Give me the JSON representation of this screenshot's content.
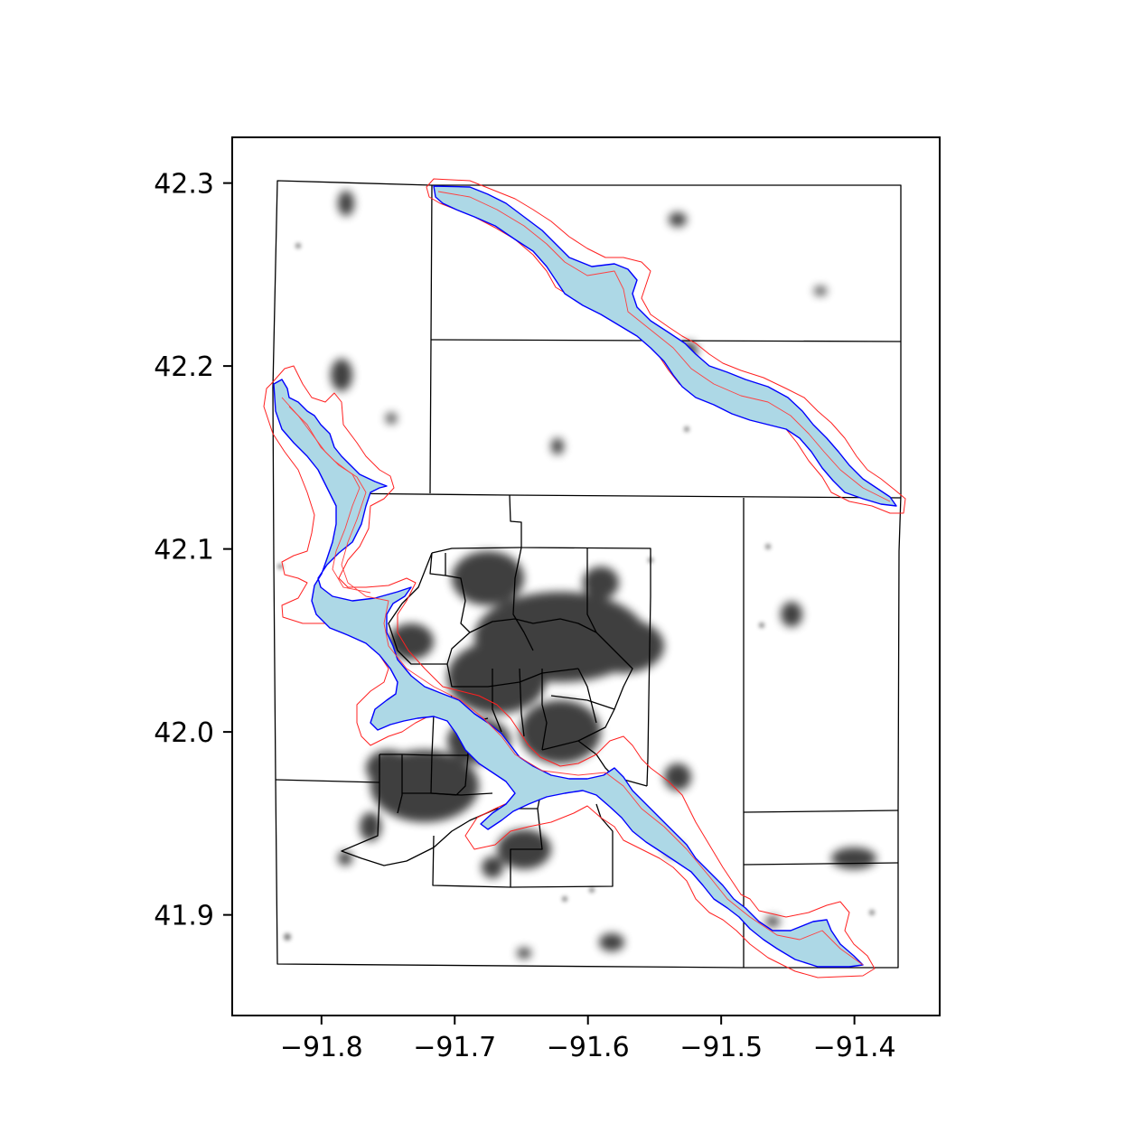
{
  "map": {
    "xlim": [
      -91.867,
      -91.336
    ],
    "ylim": [
      41.845,
      42.325
    ],
    "x_ticks": [
      {
        "value": -91.8,
        "label": "−91.8"
      },
      {
        "value": -91.7,
        "label": "−91.7"
      },
      {
        "value": -91.6,
        "label": "−91.6"
      },
      {
        "value": -91.5,
        "label": "−91.5"
      },
      {
        "value": -91.4,
        "label": "−91.4"
      }
    ],
    "y_ticks": [
      {
        "value": 42.3,
        "label": "42.3"
      },
      {
        "value": 42.2,
        "label": "42.2"
      },
      {
        "value": 42.1,
        "label": "42.1"
      },
      {
        "value": 42.0,
        "label": "42.0"
      },
      {
        "value": 41.9,
        "label": "41.9"
      }
    ],
    "colors": {
      "boundary": "#000000",
      "flood_fill": "#add8e6",
      "flood_edge": "#0000ff",
      "buffer": "#ff0000",
      "density": "#000000"
    }
  }
}
